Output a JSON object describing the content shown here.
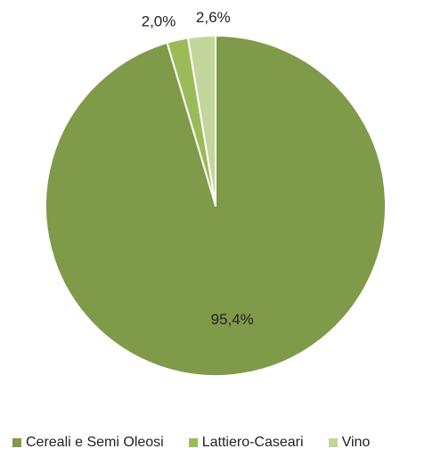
{
  "chart_data": {
    "type": "pie",
    "title": "",
    "categories": [
      "Cereali e Semi Oleosi",
      "Lattiero-Caseari",
      "Vino"
    ],
    "values": [
      95.4,
      2.0,
      2.6
    ],
    "data_labels": [
      "95,4%",
      "2,0%",
      "2,6%"
    ],
    "colors": [
      "#7f9a48",
      "#9bbb59",
      "#c3d69b"
    ],
    "legend_position": "bottom",
    "start_angle_deg": 0,
    "direction": "counterclockwise"
  },
  "legend": {
    "items": [
      {
        "label": "Cereali e Semi Oleosi",
        "color": "#7f9a48"
      },
      {
        "label": "Lattiero-Caseari",
        "color": "#9bbb59"
      },
      {
        "label": "Vino",
        "color": "#c3d69b"
      }
    ]
  }
}
